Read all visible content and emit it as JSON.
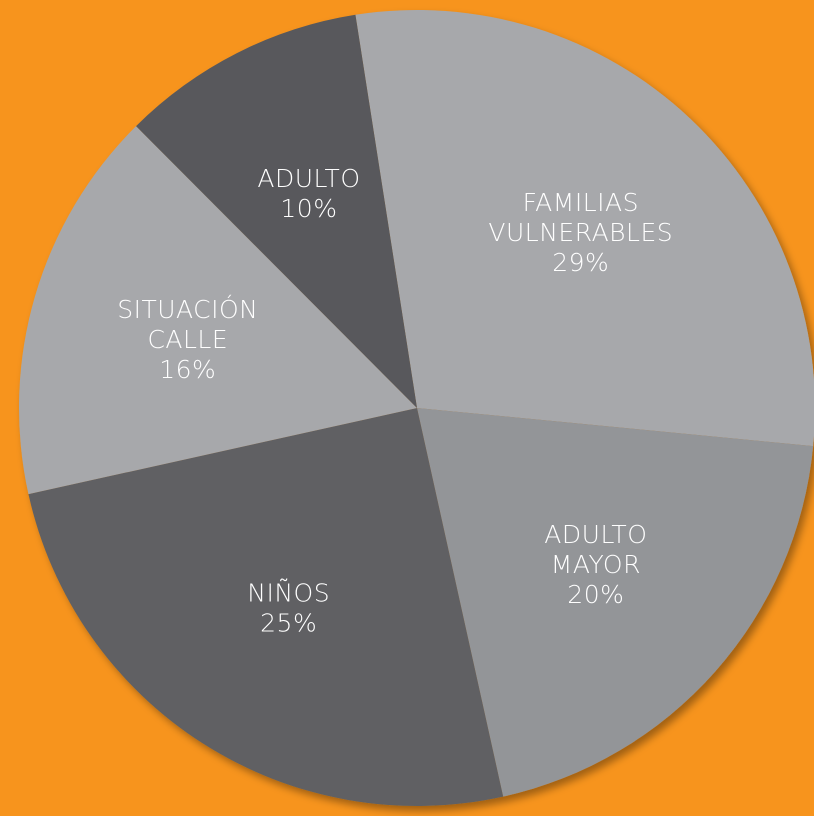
{
  "chart_data": {
    "type": "pie",
    "categories": [
      "FAMILIAS VULNERABLES",
      "ADULTO MAYOR",
      "NIÑOS",
      "SITUACIÓN CALLE",
      "ADULTO"
    ],
    "values": [
      29,
      20,
      25,
      16,
      10
    ],
    "value_labels": [
      "29%",
      "20%",
      "25%",
      "16%",
      "10%"
    ],
    "colors": [
      "#a7a8ab",
      "#939598",
      "#616163",
      "#a7a8ab",
      "#58595b"
    ]
  }
}
